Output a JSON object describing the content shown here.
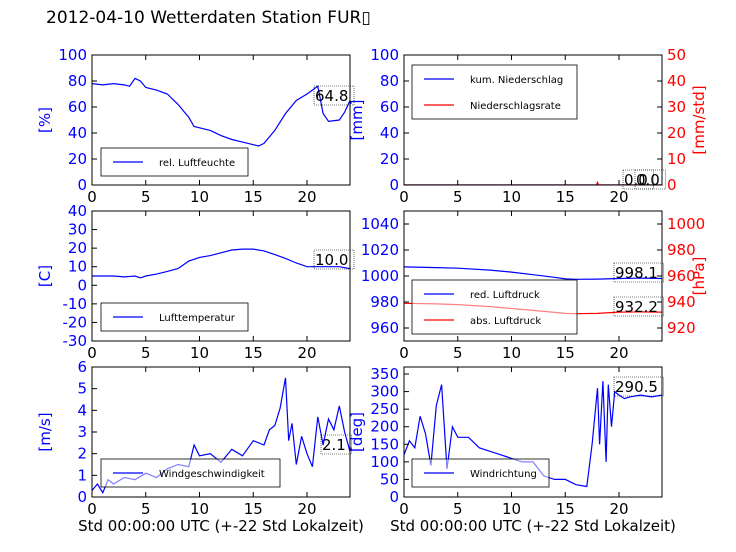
{
  "title": "2012-04-10 Wetterdaten Station FUR▯",
  "colors": {
    "blue": "#0000ff",
    "red": "#ff0000",
    "light_blue": "#8080ff"
  },
  "chart_data": [
    {
      "type": "line",
      "name": "humidity",
      "ylabel": "[%]",
      "ylim": [
        0,
        100
      ],
      "yticks": [
        0,
        20,
        40,
        60,
        80,
        100
      ],
      "xlim": [
        0,
        24
      ],
      "xticks": [
        0,
        5,
        10,
        15,
        20
      ],
      "xlabel": "",
      "series": [
        {
          "name": "rel. Luftfeuchte",
          "color": "#0000ff",
          "x": [
            0,
            1,
            2,
            3,
            3.5,
            4,
            4.5,
            5,
            6,
            7,
            8,
            9,
            9.5,
            10,
            11,
            12,
            13,
            14,
            15,
            15.5,
            16,
            17,
            18,
            19,
            20,
            20.5,
            21,
            21.5,
            22,
            23,
            23.5,
            24
          ],
          "y": [
            78,
            77,
            78,
            77,
            76,
            82,
            80,
            75,
            73,
            70,
            62,
            52,
            45,
            44,
            42,
            38,
            35,
            33,
            31,
            30,
            32,
            42,
            55,
            65,
            70,
            73,
            76,
            55,
            49,
            50,
            56,
            65
          ]
        }
      ],
      "annotation": "64.8",
      "legend_position": "bottom-center"
    },
    {
      "type": "line",
      "name": "precipitation",
      "ylabel": "[mm]",
      "ylim": [
        0,
        100
      ],
      "yticks": [
        0,
        20,
        40,
        60,
        80,
        100
      ],
      "y2label": "[mm/std]",
      "y2lim": [
        0,
        50
      ],
      "y2ticks": [
        0,
        10,
        20,
        30,
        40,
        50
      ],
      "xlim": [
        0,
        24
      ],
      "xticks": [
        0,
        5,
        10,
        15,
        20
      ],
      "xlabel": "",
      "series": [
        {
          "name": "kum. Niederschlag",
          "color": "#0000ff",
          "axis": "left",
          "x": [
            0,
            24
          ],
          "y": [
            0,
            0
          ]
        },
        {
          "name": "Niederschlagsrate",
          "color": "#ff0000",
          "axis": "right",
          "x": [
            0,
            17.9,
            18.0,
            18.1,
            24
          ],
          "y": [
            0,
            0,
            1.0,
            0,
            0
          ]
        }
      ],
      "annotation": "0.0",
      "annotation2": "0.0",
      "legend_position": "top-left"
    },
    {
      "type": "line",
      "name": "temperature",
      "ylabel": "[C]",
      "ylim": [
        -30,
        40
      ],
      "yticks": [
        -30,
        -20,
        -10,
        0,
        10,
        20,
        30,
        40
      ],
      "xlim": [
        0,
        24
      ],
      "xticks": [
        0,
        5,
        10,
        15,
        20
      ],
      "xlabel": "",
      "series": [
        {
          "name": "Lufttemperatur",
          "color": "#0000ff",
          "x": [
            0,
            2,
            3,
            4,
            4.5,
            5,
            6,
            7,
            8,
            9,
            10,
            11,
            12,
            13,
            14,
            15,
            16,
            17,
            18,
            19,
            20,
            21,
            22,
            23,
            24
          ],
          "y": [
            5,
            5,
            4.5,
            5,
            4,
            5,
            6,
            7.5,
            9,
            13,
            15,
            16,
            17.5,
            19,
            19.5,
            19.5,
            18.5,
            16.5,
            14.5,
            12,
            10,
            10,
            10,
            10,
            9
          ]
        }
      ],
      "annotation": "10.0",
      "legend_position": "bottom-center"
    },
    {
      "type": "line",
      "name": "pressure",
      "ylabel": "",
      "ylim": [
        950,
        1050
      ],
      "yticks": [
        960,
        980,
        1000,
        1020,
        1040
      ],
      "y2label": "[hPa]",
      "y2lim": [
        910,
        1010
      ],
      "y2ticks": [
        920,
        940,
        960,
        980,
        1000
      ],
      "xlim": [
        0,
        24
      ],
      "xticks": [
        0,
        5,
        10,
        15,
        20
      ],
      "xlabel": "",
      "series": [
        {
          "name": "red. Luftdruck",
          "color": "#0000ff",
          "axis": "left",
          "x": [
            0,
            3,
            5,
            8,
            10,
            12,
            14,
            15,
            16,
            18,
            20,
            22,
            24
          ],
          "y": [
            1007,
            1006.5,
            1006,
            1004.5,
            1003,
            1001,
            999,
            997.8,
            997.5,
            997.6,
            998.1,
            998.4,
            998.1
          ]
        },
        {
          "name": "abs. Luftdruck",
          "color": "#ff0000",
          "axis": "right",
          "x": [
            0,
            3,
            5,
            8,
            10,
            12,
            14,
            15,
            16,
            18,
            20,
            22,
            24
          ],
          "y": [
            939,
            938.5,
            938,
            936.5,
            935,
            933.5,
            932,
            931.2,
            931,
            931.2,
            932.2,
            932.4,
            932.2
          ]
        }
      ],
      "annotation": "998.1",
      "annotation2": "932.2",
      "legend_position": "bottom-left"
    },
    {
      "type": "line",
      "name": "wind-speed",
      "ylabel": "[m/s]",
      "ylim": [
        0,
        6
      ],
      "yticks": [
        0,
        1,
        2,
        3,
        4,
        5,
        6
      ],
      "xlim": [
        0,
        24
      ],
      "xticks": [
        0,
        5,
        10,
        15,
        20
      ],
      "xlabel": "Std 00:00:00 UTC (+-22 Std Lokalzeit)",
      "series": [
        {
          "name": "Windgeschwindigkeit",
          "color": "#0000ff",
          "x": [
            0,
            0.5,
            1,
            1.5,
            2,
            3,
            4,
            5,
            6,
            7,
            8,
            9,
            9.5,
            10,
            11,
            12,
            13,
            14,
            15,
            16,
            16.5,
            17,
            17.5,
            18,
            18.3,
            18.6,
            19,
            19.5,
            20,
            20.5,
            21,
            21.5,
            22,
            22.5,
            23,
            23.5,
            24
          ],
          "y": [
            0.3,
            0.6,
            0.2,
            0.8,
            0.6,
            0.9,
            0.8,
            1.1,
            0.9,
            1.3,
            1.5,
            1.4,
            2.4,
            1.9,
            2.0,
            1.6,
            2.2,
            1.9,
            2.6,
            2.4,
            3.1,
            3.3,
            4.1,
            5.5,
            2.6,
            3.4,
            1.5,
            2.8,
            2.0,
            1.4,
            3.7,
            2.4,
            3.6,
            3.1,
            4.2,
            3.0,
            2.1
          ]
        }
      ],
      "annotation": "2.1",
      "legend_position": "bottom-center"
    },
    {
      "type": "line",
      "name": "wind-direction",
      "ylabel": "[deg]",
      "ylim": [
        0,
        370
      ],
      "yticks": [
        0,
        50,
        100,
        150,
        200,
        250,
        300,
        350
      ],
      "xlim": [
        0,
        24
      ],
      "xticks": [
        0,
        5,
        10,
        15,
        20
      ],
      "xlabel": "Std 00:00:00 UTC (+-22 Std Lokalzeit)",
      "series": [
        {
          "name": "Windrichtung",
          "color": "#0000ff",
          "x": [
            0,
            0.5,
            1,
            1.5,
            2,
            2.5,
            3,
            3.5,
            4,
            4.5,
            5,
            6,
            7,
            8,
            9,
            10,
            11,
            12,
            13,
            14,
            15,
            16,
            17,
            17.5,
            18,
            18.2,
            18.5,
            18.8,
            19,
            19.3,
            19.6,
            20,
            20.5,
            21,
            22,
            23,
            24
          ],
          "y": [
            120,
            160,
            140,
            230,
            180,
            90,
            260,
            320,
            80,
            200,
            170,
            170,
            140,
            130,
            120,
            110,
            100,
            100,
            60,
            50,
            50,
            35,
            30,
            150,
            310,
            150,
            330,
            100,
            320,
            200,
            300,
            290,
            280,
            285,
            290,
            285,
            290
          ]
        }
      ],
      "annotation": "290.5",
      "legend_position": "bottom-center"
    }
  ]
}
